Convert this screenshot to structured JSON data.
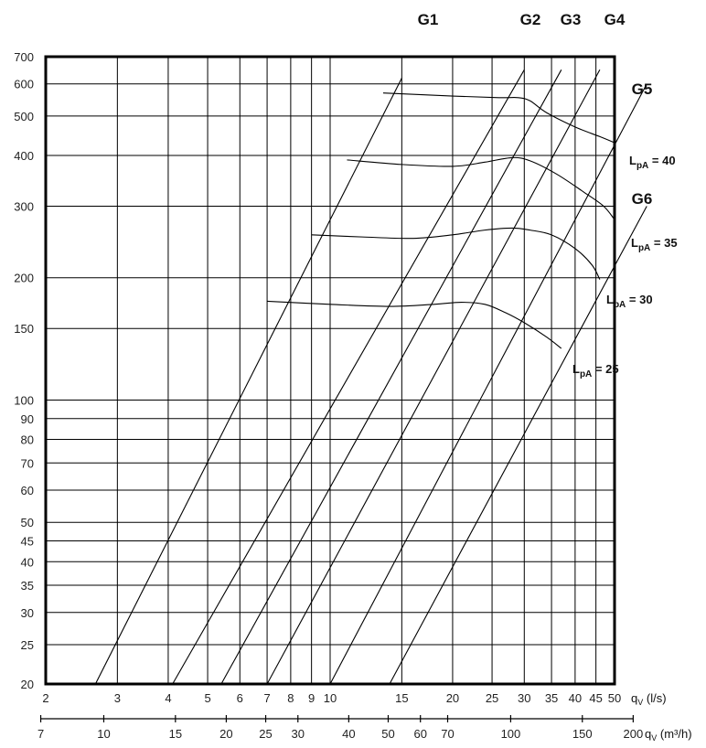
{
  "chart_data": {
    "type": "line",
    "x_scale": "log",
    "y_scale": "log",
    "xlim": [
      2,
      50
    ],
    "ylim": [
      20,
      700
    ],
    "grid": true,
    "x_ticks": [
      "2",
      "3",
      "4",
      "5",
      "6",
      "7",
      "8",
      "9",
      "10",
      "15",
      "20",
      "25",
      "30",
      "35",
      "40",
      "45",
      "50"
    ],
    "x_ticks_values": [
      2,
      3,
      4,
      5,
      6,
      7,
      8,
      9,
      10,
      15,
      20,
      25,
      30,
      35,
      40,
      45,
      50
    ],
    "x_unit": {
      "symbol": "q",
      "sub": "V",
      "unit": " (l/s)"
    },
    "x2_ticks": [
      "7",
      "10",
      "15",
      "20",
      "25",
      "30",
      "40",
      "50",
      "60",
      "70",
      "100",
      "150",
      "200"
    ],
    "x2_ticks_values": [
      7,
      10,
      15,
      20,
      25,
      30,
      40,
      50,
      60,
      70,
      100,
      150,
      200
    ],
    "x2_unit": {
      "symbol": "q",
      "sub": "V",
      "unit": " (m³/h)"
    },
    "y_ticks": [
      "20",
      "25",
      "30",
      "35",
      "40",
      "45",
      "50",
      "60",
      "70",
      "80",
      "90",
      "100",
      "150",
      "200",
      "300",
      "400",
      "500",
      "600",
      "700"
    ],
    "y_ticks_values": [
      20,
      25,
      30,
      35,
      40,
      45,
      50,
      60,
      70,
      80,
      90,
      100,
      150,
      200,
      300,
      400,
      500,
      600,
      700
    ],
    "series": [
      {
        "name": "G1",
        "points": [
          [
            2.65,
            20
          ],
          [
            15,
            620
          ]
        ]
      },
      {
        "name": "G2",
        "points": [
          [
            4.1,
            20
          ],
          [
            30,
            650
          ]
        ]
      },
      {
        "name": "G3",
        "points": [
          [
            5.4,
            20
          ],
          [
            37,
            650
          ]
        ]
      },
      {
        "name": "G4",
        "points": [
          [
            7.0,
            20
          ],
          [
            46,
            650
          ]
        ]
      },
      {
        "name": "G5",
        "points": [
          [
            10,
            20
          ],
          [
            60,
            600
          ]
        ]
      },
      {
        "name": "G6",
        "points": [
          [
            14,
            20
          ],
          [
            60,
            300
          ]
        ]
      }
    ],
    "noise_curves": [
      {
        "name": "LpA = 40",
        "points": [
          [
            13.5,
            570
          ],
          [
            20,
            560
          ],
          [
            26,
            555
          ],
          [
            29,
            555
          ],
          [
            31,
            545
          ],
          [
            34,
            510
          ],
          [
            40,
            470
          ],
          [
            46,
            445
          ],
          [
            50,
            430
          ]
        ]
      },
      {
        "name": "LpA = 35",
        "points": [
          [
            11,
            390
          ],
          [
            15,
            380
          ],
          [
            20,
            376
          ],
          [
            24,
            385
          ],
          [
            28,
            395
          ],
          [
            31,
            388
          ],
          [
            36,
            360
          ],
          [
            42,
            325
          ],
          [
            47,
            300
          ],
          [
            50,
            278
          ]
        ]
      },
      {
        "name": "LpA = 30",
        "points": [
          [
            9,
            255
          ],
          [
            12,
            252
          ],
          [
            16,
            250
          ],
          [
            20,
            255
          ],
          [
            24,
            262
          ],
          [
            28,
            265
          ],
          [
            31,
            262
          ],
          [
            35,
            255
          ],
          [
            40,
            236
          ],
          [
            44,
            215
          ],
          [
            46,
            198
          ]
        ]
      },
      {
        "name": "LpA = 25",
        "points": [
          [
            7,
            175
          ],
          [
            10,
            172
          ],
          [
            14,
            170
          ],
          [
            18,
            172
          ],
          [
            21,
            174
          ],
          [
            24,
            172
          ],
          [
            27,
            164
          ],
          [
            30,
            155
          ],
          [
            34,
            143
          ],
          [
            37,
            134
          ]
        ]
      }
    ],
    "labels": {
      "G1": "G1",
      "G2": "G2",
      "G3": "G3",
      "G4": "G4",
      "G5": "G5",
      "G6": "G6",
      "lpa_main": "L",
      "lpa_sub": "pA",
      "lpa40": " = 40",
      "lpa35": " = 35",
      "lpa30": " = 30",
      "lpa25": " = 25"
    }
  }
}
